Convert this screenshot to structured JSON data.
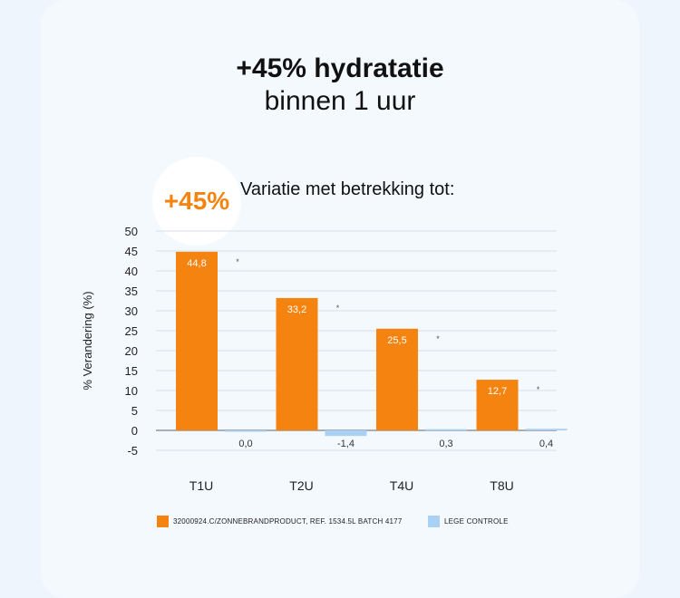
{
  "title": {
    "line1": "+45% hydratatie",
    "line2": "binnen 1 uur"
  },
  "badge": "+45%",
  "subtitle": "Variatie met betrekking tot:",
  "colors": {
    "product": "#f5830f",
    "control": "#a9d0f5",
    "grid": "#d9dee4"
  },
  "chart_data": {
    "type": "bar",
    "ylabel": "% Verandering (%)",
    "xlabel": "",
    "ylim": [
      -5,
      50
    ],
    "yticks": [
      50,
      45,
      40,
      35,
      30,
      25,
      20,
      15,
      10,
      5,
      0,
      -5
    ],
    "categories": [
      "T1U",
      "T2U",
      "T4U",
      "T8U"
    ],
    "series": [
      {
        "name": "32000924.C/ZONNEBRANDPRODUCT, REF. 1534.5L BATCH 4177",
        "values": [
          44.8,
          33.2,
          25.5,
          12.7
        ],
        "labels": [
          "44,8",
          "33,2",
          "25,5",
          "12,7"
        ]
      },
      {
        "name": "LEGE CONTROLE",
        "values": [
          0.0,
          -1.4,
          0.3,
          0.4
        ],
        "labels": [
          "0,0",
          "-1,4",
          "0,3",
          "0,4"
        ]
      }
    ],
    "annotations": [
      "*",
      "*",
      "*",
      "*"
    ],
    "grid": true,
    "legend_position": "bottom"
  }
}
